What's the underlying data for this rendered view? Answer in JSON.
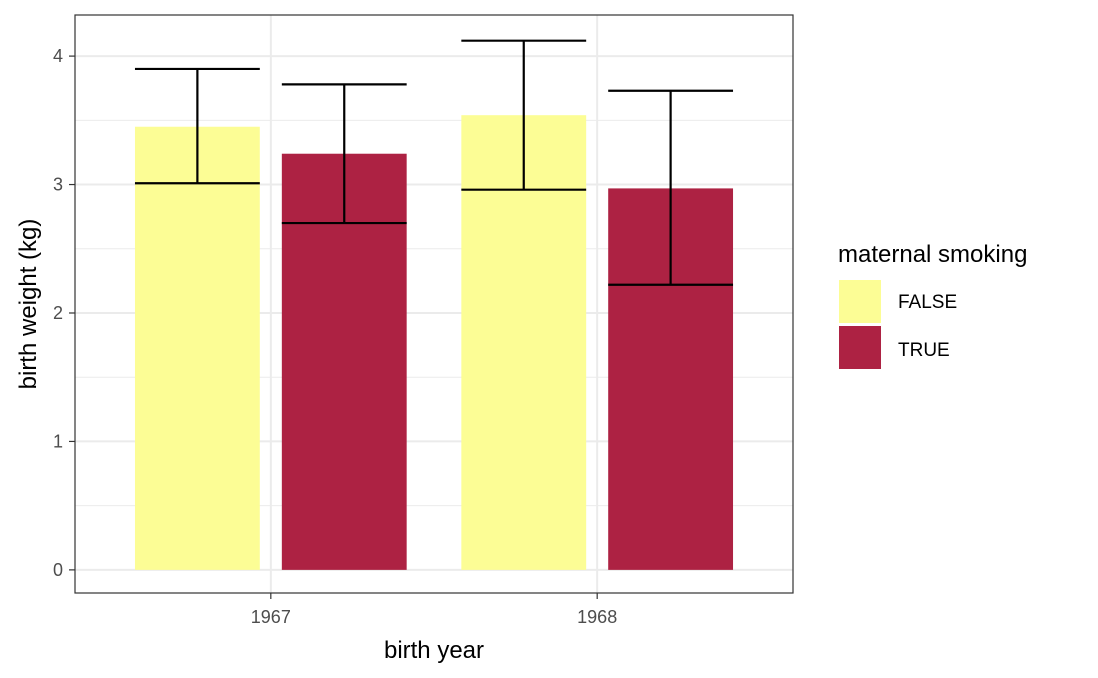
{
  "chart_data": {
    "type": "bar",
    "title": "",
    "xlabel": "birth year",
    "ylabel": "birth weight (kg)",
    "categories": [
      "1967",
      "1968"
    ],
    "ylim": [
      -0.18,
      4.32
    ],
    "y_ticks": [
      0,
      1,
      2,
      3,
      4
    ],
    "y_tick_labels": [
      "0",
      "1",
      "2",
      "3",
      "4"
    ],
    "grid": true,
    "legend": {
      "title": "maternal smoking",
      "position": "right"
    },
    "series": [
      {
        "name": "FALSE",
        "color": "#FCFD95",
        "values": [
          3.45,
          3.54
        ],
        "error_low": [
          3.01,
          2.96
        ],
        "error_high": [
          3.9,
          4.12
        ]
      },
      {
        "name": "TRUE",
        "color": "#AD2243",
        "values": [
          3.24,
          2.97
        ],
        "error_low": [
          2.7,
          2.22
        ],
        "error_high": [
          3.78,
          3.73
        ]
      }
    ]
  }
}
